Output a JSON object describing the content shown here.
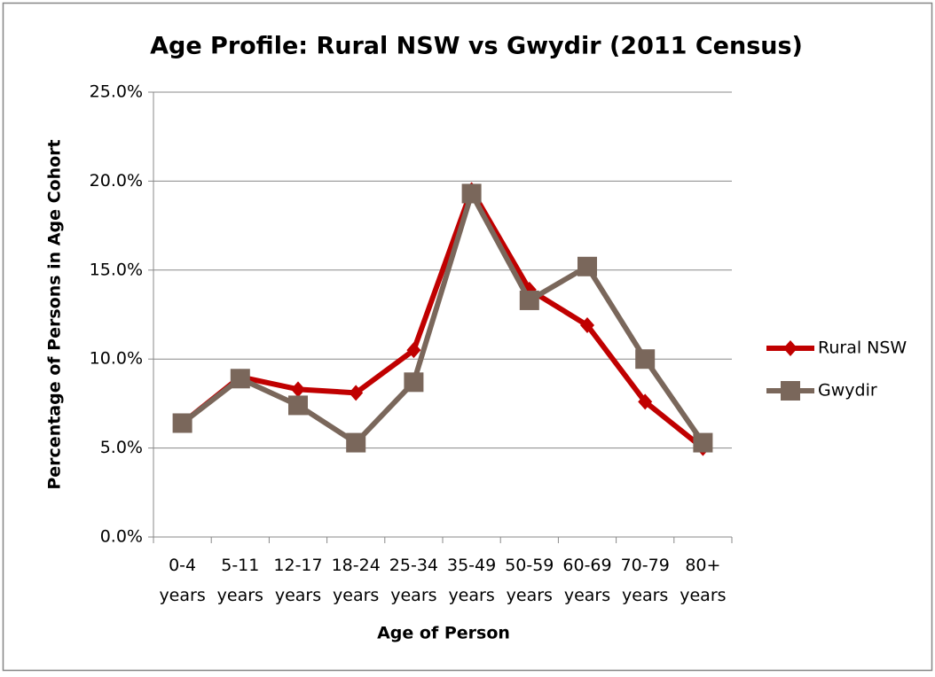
{
  "chart_data": {
    "type": "line",
    "title": "Age Profile: Rural NSW vs Gwydir (2011 Census)",
    "x_label": "Age of Person",
    "y_label": "Percentage of Persons in Age Cohort",
    "categories": [
      "0-4 years",
      "5-11 years",
      "12-17 years",
      "18-24 years",
      "25-34 years",
      "35-49 years",
      "50-59 years",
      "60-69 years",
      "70-79 years",
      "80+ years"
    ],
    "series": [
      {
        "name": "Rural NSW",
        "color": "#c00000",
        "marker": "diamond",
        "values": [
          6.4,
          9.0,
          8.3,
          8.1,
          10.5,
          19.5,
          13.9,
          11.9,
          7.6,
          5.0
        ]
      },
      {
        "name": "Gwydir",
        "color": "#7a675b",
        "marker": "square",
        "values": [
          6.4,
          8.9,
          7.4,
          5.3,
          8.7,
          19.3,
          13.3,
          15.2,
          10.0,
          5.3
        ]
      }
    ],
    "ylim": [
      0,
      25
    ],
    "yticks": [
      {
        "value": 0,
        "label": "0.0%"
      },
      {
        "value": 5,
        "label": "5.0%"
      },
      {
        "value": 10,
        "label": "10.0%"
      },
      {
        "value": 15,
        "label": "15.0%"
      },
      {
        "value": 20,
        "label": "20.0%"
      },
      {
        "value": 25,
        "label": "25.0%"
      }
    ],
    "grid": true,
    "legend": "right"
  }
}
